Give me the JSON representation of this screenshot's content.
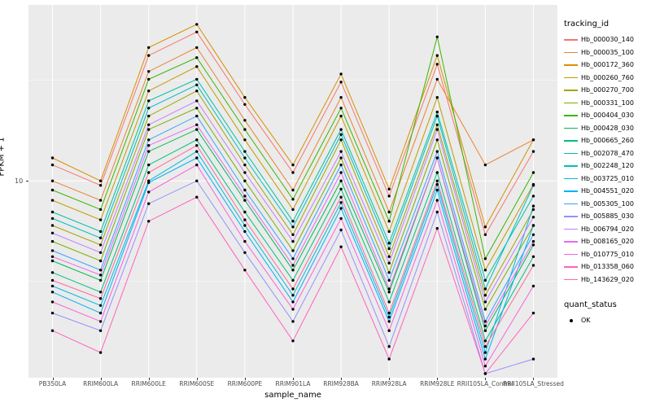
{
  "figure": {
    "y_axis_title": "FPKM + 1",
    "x_axis_title": "sample_name",
    "y_tick_label": "10"
  },
  "legend": {
    "tracking_title": "tracking_id",
    "quant_title": "quant_status",
    "quant_label": "OK",
    "quant_marker_color": "#000000"
  },
  "chart_data": {
    "type": "line",
    "title": "",
    "xlabel": "sample_name",
    "ylabel": "FPKM + 1",
    "y_scale": "log10",
    "ylim": [
      1.05,
      75
    ],
    "major_breaks": [
      10
    ],
    "minor_breaks": [
      3.162,
      31.62
    ],
    "grid": true,
    "panel_bg": "#EBEBEB",
    "grid_color": "#FFFFFF",
    "point_color": "#000000",
    "legend_position": "right",
    "x_categories": [
      "PB350LA",
      "RRIM600LA",
      "RRIM600LE",
      "RRIM600SE",
      "RRIM600PE",
      "RRIM901LA",
      "RRIM928BA",
      "RRIM928LA",
      "RRIM928LE",
      "RRII105LA_Control",
      "RRII105LA_Stressed"
    ],
    "series": [
      {
        "name": "Hb_000030_140",
        "color": "#F8766D",
        "values": [
          12,
          9.5,
          42,
          55,
          24,
          11,
          31,
          8.4,
          38,
          5.4,
          14
        ]
      },
      {
        "name": "Hb_000035_100",
        "color": "#EA8331",
        "values": [
          10,
          8,
          35,
          46,
          20,
          9,
          26,
          7,
          32,
          12,
          16
        ]
      },
      {
        "name": "Hb_000172_360",
        "color": "#D89000",
        "values": [
          13,
          10,
          46,
          60,
          26,
          12,
          34,
          9.1,
          42,
          5.9,
          16
        ]
      },
      {
        "name": "Hb_000260_760",
        "color": "#C09B00",
        "values": [
          8,
          6.4,
          28,
          37,
          16,
          7.2,
          21,
          5.6,
          26,
          3.6,
          9.6
        ]
      },
      {
        "name": "Hb_000270_700",
        "color": "#A3A500",
        "values": [
          6,
          4.8,
          21,
          28,
          12,
          5.4,
          16,
          4.2,
          19,
          2.7,
          7.2
        ]
      },
      {
        "name": "Hb_000331_100",
        "color": "#7CAE00",
        "values": [
          5,
          4,
          18,
          23,
          10,
          4.5,
          13,
          3.5,
          16,
          2.3,
          6
        ]
      },
      {
        "name": "Hb_000404_030",
        "color": "#39B600",
        "values": [
          9,
          7.2,
          32,
          41,
          18,
          8.1,
          23,
          6.3,
          52,
          4.1,
          11
        ]
      },
      {
        "name": "Hb_000428_030",
        "color": "#00BB4E",
        "values": [
          4,
          3.2,
          14,
          18,
          8,
          3.6,
          10,
          2.8,
          13,
          1.8,
          4.8
        ]
      },
      {
        "name": "Hb_000665_260",
        "color": "#00BF7D",
        "values": [
          3.5,
          2.8,
          12,
          16,
          7,
          3.2,
          9.1,
          2.5,
          11,
          1.6,
          4.2
        ]
      },
      {
        "name": "Hb_002078_470",
        "color": "#00C1A3",
        "values": [
          7,
          5.6,
          25,
          32,
          14,
          6.3,
          18,
          4.9,
          22,
          3.2,
          8.4
        ]
      },
      {
        "name": "Hb_002248_120",
        "color": "#00BFC4",
        "values": [
          6.5,
          5.2,
          23,
          30,
          13,
          5.9,
          17,
          4.6,
          21,
          2.9,
          9.5
        ]
      },
      {
        "name": "Hb_003725_010",
        "color": "#00BAE0",
        "values": [
          3,
          2.4,
          10,
          14,
          6,
          2.7,
          7.8,
          2.1,
          9.6,
          1.4,
          7.5
        ]
      },
      {
        "name": "Hb_004551_020",
        "color": "#00B0F6",
        "values": [
          2.8,
          2.2,
          9.8,
          13,
          5.6,
          2.5,
          7.3,
          2,
          9,
          1.3,
          6
        ]
      },
      {
        "name": "Hb_005305_100",
        "color": "#35A2FF",
        "values": [
          4.5,
          3.6,
          16,
          21,
          9,
          4.1,
          12,
          3.2,
          14,
          2,
          5.4
        ]
      },
      {
        "name": "Hb_005885_030",
        "color": "#9590FF",
        "values": [
          2.2,
          1.8,
          7.7,
          10,
          4.4,
          2,
          5.7,
          1.5,
          7,
          1.1,
          1.3
        ]
      },
      {
        "name": "Hb_006794_020",
        "color": "#C77CFF",
        "values": [
          5.5,
          4.4,
          19,
          25,
          11,
          5,
          14,
          3.9,
          18,
          2.5,
          6.6
        ]
      },
      {
        "name": "Hb_008165_020",
        "color": "#E76BF3",
        "values": [
          4.2,
          3.4,
          15,
          19,
          8.4,
          3.8,
          11,
          2.9,
          13,
          1.9,
          5
        ]
      },
      {
        "name": "Hb_010775_010",
        "color": "#FA62DB",
        "values": [
          2.5,
          2,
          8.8,
          12,
          5,
          2.3,
          6.5,
          1.8,
          8,
          1.2,
          3
        ]
      },
      {
        "name": "Hb_013358_060",
        "color": "#FF62BC",
        "values": [
          1.8,
          1.4,
          6.3,
          8.3,
          3.6,
          1.6,
          4.7,
          1.3,
          5.8,
          1.1,
          2.2
        ]
      },
      {
        "name": "Hb_143629_020",
        "color": "#FF6A98",
        "values": [
          3.2,
          2.6,
          11,
          15,
          6.4,
          2.9,
          8.3,
          2.2,
          10,
          1.5,
          3.8
        ]
      }
    ]
  }
}
